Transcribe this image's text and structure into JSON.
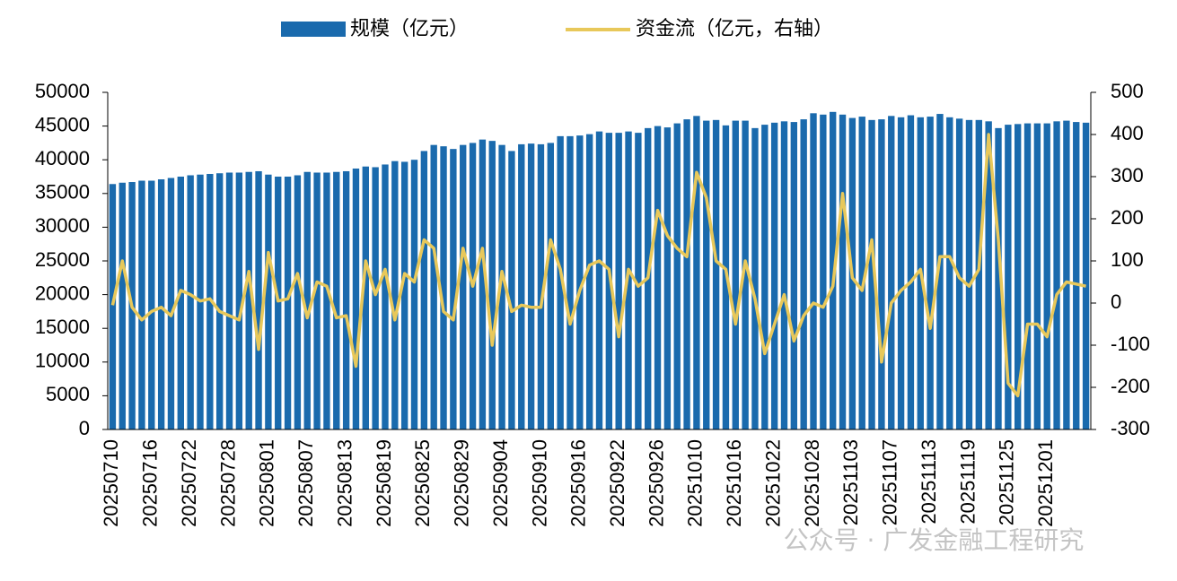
{
  "chart_data": {
    "type": "bar_line",
    "categories": [
      "20250710",
      null,
      null,
      null,
      "20250716",
      null,
      null,
      null,
      "20250722",
      null,
      null,
      null,
      "20250728",
      null,
      null,
      null,
      "20250801",
      null,
      null,
      null,
      "20250807",
      null,
      null,
      null,
      "20250813",
      null,
      null,
      null,
      "20250819",
      null,
      null,
      null,
      "20250825",
      null,
      null,
      null,
      "20250829",
      null,
      null,
      null,
      "20250904",
      null,
      null,
      null,
      "20250910",
      null,
      null,
      null,
      "20250916",
      null,
      null,
      null,
      "20250922",
      null,
      null,
      null,
      "20250926",
      null,
      null,
      null,
      "20251010",
      null,
      null,
      null,
      "20251016",
      null,
      null,
      null,
      "20251022",
      null,
      null,
      null,
      "20251028",
      null,
      null,
      null,
      "20251103",
      null,
      null,
      null,
      "20251107",
      null,
      null,
      null,
      "20251113",
      null,
      null,
      null,
      "20251119",
      null,
      null,
      null,
      "20251125",
      null,
      null,
      null,
      "20251201",
      null,
      null,
      null,
      null
    ],
    "series": [
      {
        "name": "规模（亿元）",
        "color": "#1a6aad",
        "axis": "y",
        "values": [
          36400,
          36600,
          36700,
          36900,
          36900,
          37100,
          37300,
          37500,
          37700,
          37800,
          37900,
          38000,
          38100,
          38100,
          38200,
          38300,
          37800,
          37500,
          37500,
          37700,
          38200,
          38100,
          38100,
          38200,
          38300,
          38700,
          39000,
          38900,
          39300,
          39800,
          39700,
          40000,
          41300,
          42200,
          42000,
          41600,
          42200,
          42500,
          43000,
          42800,
          42200,
          41300,
          42300,
          42400,
          42300,
          42500,
          43500,
          43500,
          43600,
          43800,
          44200,
          44000,
          44000,
          44200,
          44000,
          44700,
          45000,
          44800,
          45400,
          46000,
          46500,
          45800,
          45900,
          45100,
          45800,
          45800,
          44700,
          45200,
          45500,
          45700,
          45600,
          46000,
          46900,
          46700,
          47100,
          46700,
          46200,
          46400,
          45900,
          46000,
          46500,
          46300,
          46600,
          46300,
          46400,
          46800,
          46300,
          46100,
          45900,
          45900,
          45700,
          44700,
          45200,
          45300,
          45400,
          45400,
          45400,
          45700,
          45800,
          45600,
          45500
        ]
      },
      {
        "name": "资金流（亿元，右轴）",
        "color": "#e8c85a",
        "axis": "y2",
        "values": [
          -5,
          100,
          -10,
          -40,
          -20,
          -10,
          -30,
          30,
          20,
          5,
          10,
          -20,
          -30,
          -40,
          75,
          -110,
          120,
          5,
          10,
          70,
          -35,
          50,
          40,
          -35,
          -30,
          -150,
          100,
          20,
          80,
          -40,
          70,
          50,
          150,
          130,
          -20,
          -40,
          130,
          40,
          130,
          -100,
          75,
          -20,
          -5,
          -10,
          -10,
          150,
          80,
          -50,
          30,
          90,
          100,
          80,
          -80,
          80,
          40,
          60,
          220,
          160,
          130,
          110,
          310,
          250,
          100,
          80,
          -50,
          100,
          10,
          -120,
          -50,
          20,
          -90,
          -30,
          0,
          -10,
          40,
          260,
          60,
          30,
          150,
          -140,
          0,
          30,
          50,
          80,
          -60,
          110,
          110,
          60,
          40,
          80,
          400,
          150,
          -190,
          -220,
          -50,
          -50,
          -80,
          20,
          50,
          45,
          40
        ]
      }
    ],
    "ylim": [
      0,
      50000
    ],
    "yticks": [
      0,
      5000,
      10000,
      15000,
      20000,
      25000,
      30000,
      35000,
      40000,
      45000,
      50000
    ],
    "y2lim": [
      -300,
      500
    ],
    "y2ticks": [
      -300,
      -200,
      -100,
      0,
      100,
      200,
      300,
      400,
      500
    ],
    "legend": "top",
    "watermark": "公众号 · 广发金融工程研究"
  }
}
